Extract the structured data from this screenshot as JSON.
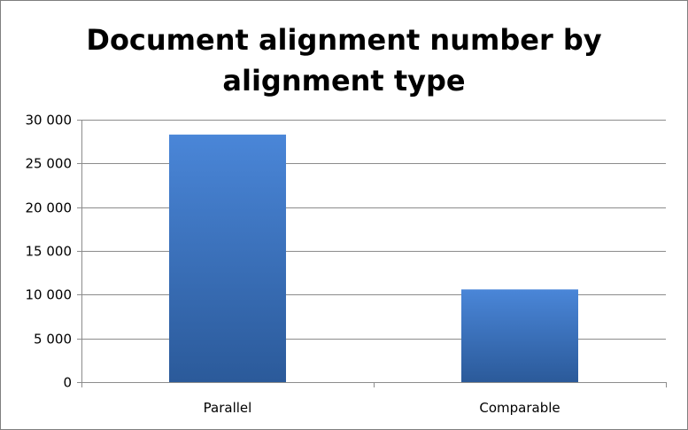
{
  "chart_data": {
    "type": "bar",
    "title_lines": [
      "Document alignment number by",
      "alignment type"
    ],
    "categories": [
      "Parallel",
      "Comparable"
    ],
    "values": [
      28300,
      10600
    ],
    "ylim": [
      0,
      30000
    ],
    "y_ticks": [
      0,
      5000,
      10000,
      15000,
      20000,
      25000,
      30000
    ],
    "y_tick_labels": [
      "0",
      "5 000",
      "10 000",
      "15 000",
      "20 000",
      "25 000",
      "30 000"
    ],
    "grid": true,
    "legend": "none",
    "colors": {
      "bar_top": "#4a86d8",
      "bar_bottom": "#2b5a9a",
      "grid": "#8c8c8c",
      "axis": "#8c8c8c"
    }
  }
}
